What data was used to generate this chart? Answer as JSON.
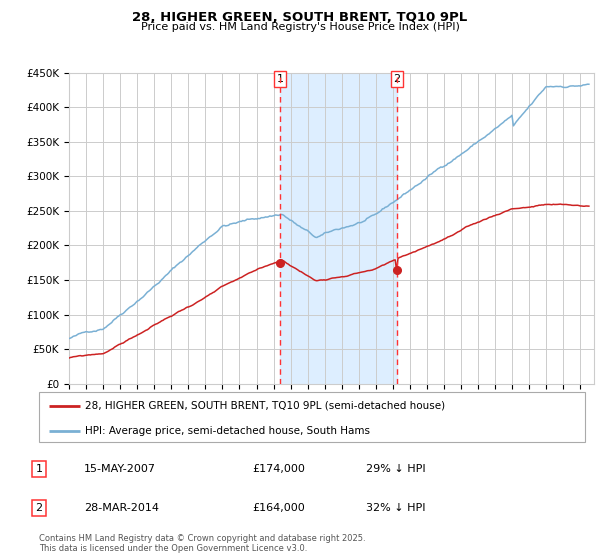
{
  "title": "28, HIGHER GREEN, SOUTH BRENT, TQ10 9PL",
  "subtitle": "Price paid vs. HM Land Registry's House Price Index (HPI)",
  "legend_line1": "28, HIGHER GREEN, SOUTH BRENT, TQ10 9PL (semi-detached house)",
  "legend_line2": "HPI: Average price, semi-detached house, South Hams",
  "transaction1_date": "15-MAY-2007",
  "transaction1_price": "£174,000",
  "transaction1_hpi": "29% ↓ HPI",
  "transaction2_date": "28-MAR-2014",
  "transaction2_price": "£164,000",
  "transaction2_hpi": "32% ↓ HPI",
  "footer": "Contains HM Land Registry data © Crown copyright and database right 2025.\nThis data is licensed under the Open Government Licence v3.0.",
  "ylim": [
    0,
    450000
  ],
  "yticks": [
    0,
    50000,
    100000,
    150000,
    200000,
    250000,
    300000,
    350000,
    400000,
    450000
  ],
  "vline1_year": 2007.37,
  "vline2_year": 2014.24,
  "marker1_price": 174000,
  "marker2_price": 164000,
  "shade_color": "#ddeeff",
  "vline_color": "#ff3333",
  "hpi_line_color": "#7ab0d4",
  "price_line_color": "#cc2222",
  "grid_color": "#cccccc",
  "xmin": 1995,
  "xmax": 2025.8
}
